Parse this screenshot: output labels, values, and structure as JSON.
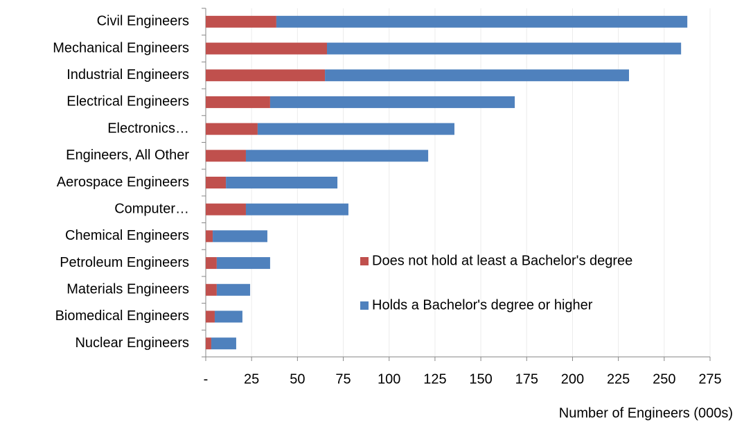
{
  "chart_data": {
    "type": "stacked_barh",
    "categories": [
      "Civil Engineers",
      "Mechanical Engineers",
      "Industrial Engineers",
      "Electrical Engineers",
      "Electronics…",
      "Engineers, All Other",
      "Aerospace Engineers",
      "Computer…",
      "Chemical Engineers",
      "Petroleum Engineers",
      "Materials Engineers",
      "Biomedical Engineers",
      "Nuclear Engineers"
    ],
    "series": [
      {
        "name": "Does not hold at least a Bachelor's degree",
        "color": "#c0504d",
        "values": [
          38.5,
          66.1,
          65.0,
          35.1,
          28.3,
          21.9,
          11.0,
          21.9,
          3.8,
          6.0,
          6.0,
          4.9,
          3.0
        ]
      },
      {
        "name": "Holds a Bachelor's degree or higher",
        "color": "#4f81bd",
        "values": [
          224.1,
          193.1,
          165.8,
          133.4,
          107.3,
          99.4,
          60.8,
          55.9,
          29.8,
          29.1,
          18.2,
          15.1,
          13.6
        ]
      }
    ],
    "xlabel": "Number of Engineers (000s)",
    "xlim": [
      0,
      275
    ],
    "xticks": [
      {
        "value": 0,
        "label": "-"
      },
      25,
      50,
      75,
      100,
      125,
      150,
      175,
      200,
      225,
      250,
      275
    ],
    "grid": true
  }
}
